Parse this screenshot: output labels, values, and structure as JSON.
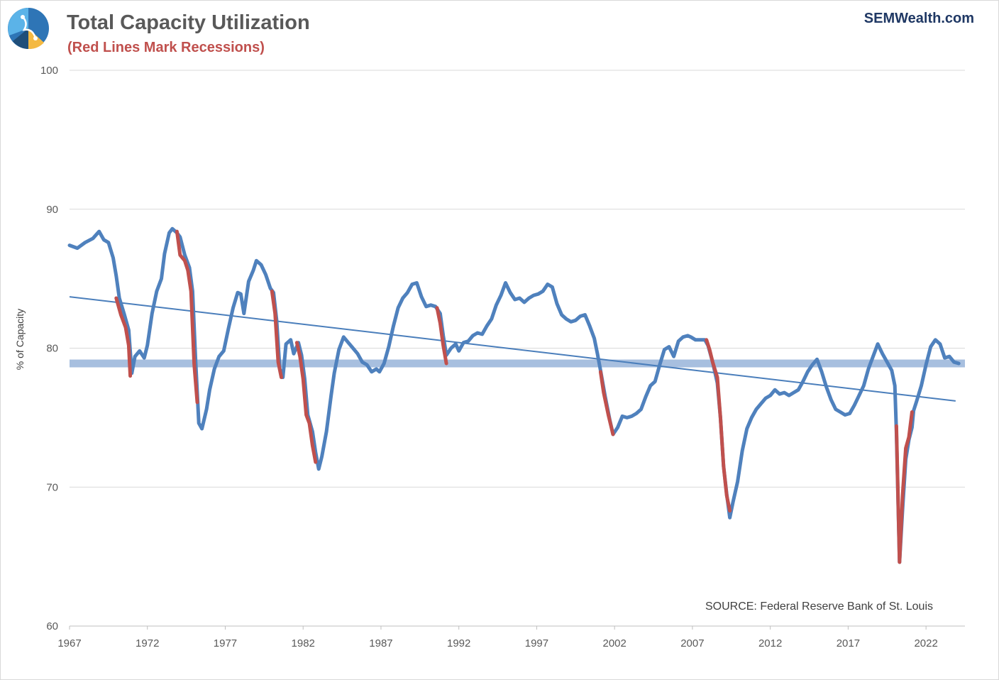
{
  "header": {
    "title": "Total Capacity Utilization",
    "subtitle": "(Red Lines Mark Recessions)",
    "brand": "SEMWealth.com"
  },
  "source_note": "SOURCE:  Federal Reserve Bank of St. Louis",
  "colors": {
    "series": "#4f81bd",
    "recession": "#c0504d",
    "trend": "#4a7ebb",
    "reference_band": "#a7bfdf",
    "grid": "#d9d9d9",
    "title": "#595959",
    "brand": "#1f3864"
  },
  "chart_data": {
    "type": "line",
    "title": "Total Capacity Utilization",
    "subtitle": "(Red Lines Mark Recessions)",
    "ylabel": "% of Capacity",
    "xlabel": "",
    "xlim": [
      1967,
      2024.5
    ],
    "ylim": [
      60,
      100
    ],
    "x_ticks": [
      "1967",
      "1972",
      "1977",
      "1982",
      "1987",
      "1992",
      "1997",
      "2002",
      "2007",
      "2012",
      "2017",
      "2022"
    ],
    "y_ticks": [
      "60",
      "70",
      "80",
      "90",
      "100"
    ],
    "grid": "horizontal",
    "legend": "none",
    "series": [
      {
        "values": [
          [
            1967.0,
            87.4
          ],
          [
            1967.5,
            87.2
          ],
          [
            1968.0,
            87.6
          ],
          [
            1968.5,
            87.9
          ],
          [
            1968.9,
            88.4
          ],
          [
            1969.2,
            87.8
          ],
          [
            1969.5,
            87.6
          ],
          [
            1969.8,
            86.5
          ],
          [
            1970.0,
            85.2
          ],
          [
            1970.2,
            83.6
          ],
          [
            1970.5,
            82.5
          ],
          [
            1970.8,
            81.3
          ],
          [
            1971.0,
            78.2
          ],
          [
            1971.2,
            79.4
          ],
          [
            1971.5,
            79.8
          ],
          [
            1971.8,
            79.3
          ],
          [
            1972.0,
            80.2
          ],
          [
            1972.3,
            82.5
          ],
          [
            1972.6,
            84.1
          ],
          [
            1972.9,
            85.0
          ],
          [
            1973.1,
            86.8
          ],
          [
            1973.4,
            88.3
          ],
          [
            1973.6,
            88.6
          ],
          [
            1973.9,
            88.3
          ],
          [
            1974.1,
            88.0
          ],
          [
            1974.4,
            86.7
          ],
          [
            1974.7,
            85.8
          ],
          [
            1974.9,
            84.1
          ],
          [
            1975.1,
            79.0
          ],
          [
            1975.3,
            74.6
          ],
          [
            1975.5,
            74.2
          ],
          [
            1975.8,
            75.6
          ],
          [
            1976.0,
            77.0
          ],
          [
            1976.3,
            78.5
          ],
          [
            1976.6,
            79.4
          ],
          [
            1976.9,
            79.8
          ],
          [
            1977.2,
            81.4
          ],
          [
            1977.5,
            82.9
          ],
          [
            1977.8,
            84.0
          ],
          [
            1978.0,
            83.9
          ],
          [
            1978.2,
            82.5
          ],
          [
            1978.5,
            84.8
          ],
          [
            1978.8,
            85.6
          ],
          [
            1979.0,
            86.3
          ],
          [
            1979.3,
            86.0
          ],
          [
            1979.6,
            85.3
          ],
          [
            1979.9,
            84.3
          ],
          [
            1980.1,
            84.0
          ],
          [
            1980.3,
            82.0
          ],
          [
            1980.5,
            78.5
          ],
          [
            1980.7,
            77.9
          ],
          [
            1980.9,
            80.3
          ],
          [
            1981.2,
            80.6
          ],
          [
            1981.4,
            79.6
          ],
          [
            1981.7,
            80.4
          ],
          [
            1981.9,
            79.5
          ],
          [
            1982.1,
            77.8
          ],
          [
            1982.3,
            75.2
          ],
          [
            1982.6,
            74.0
          ],
          [
            1982.8,
            72.5
          ],
          [
            1983.0,
            71.3
          ],
          [
            1983.2,
            72.2
          ],
          [
            1983.5,
            74.0
          ],
          [
            1983.8,
            76.6
          ],
          [
            1984.0,
            78.2
          ],
          [
            1984.3,
            79.9
          ],
          [
            1984.6,
            80.8
          ],
          [
            1984.9,
            80.4
          ],
          [
            1985.2,
            80.0
          ],
          [
            1985.5,
            79.6
          ],
          [
            1985.8,
            79.0
          ],
          [
            1986.1,
            78.8
          ],
          [
            1986.4,
            78.3
          ],
          [
            1986.7,
            78.5
          ],
          [
            1986.9,
            78.3
          ],
          [
            1987.2,
            78.9
          ],
          [
            1987.5,
            80.1
          ],
          [
            1987.8,
            81.6
          ],
          [
            1988.1,
            82.9
          ],
          [
            1988.4,
            83.6
          ],
          [
            1988.7,
            84.0
          ],
          [
            1989.0,
            84.6
          ],
          [
            1989.3,
            84.7
          ],
          [
            1989.6,
            83.7
          ],
          [
            1989.9,
            83.0
          ],
          [
            1990.2,
            83.1
          ],
          [
            1990.5,
            83.0
          ],
          [
            1990.8,
            82.5
          ],
          [
            1991.0,
            80.9
          ],
          [
            1991.2,
            79.5
          ],
          [
            1991.5,
            80.0
          ],
          [
            1991.8,
            80.3
          ],
          [
            1992.0,
            79.8
          ],
          [
            1992.3,
            80.4
          ],
          [
            1992.6,
            80.5
          ],
          [
            1992.9,
            80.9
          ],
          [
            1993.2,
            81.1
          ],
          [
            1993.5,
            81.0
          ],
          [
            1993.8,
            81.6
          ],
          [
            1994.1,
            82.1
          ],
          [
            1994.4,
            83.1
          ],
          [
            1994.7,
            83.8
          ],
          [
            1995.0,
            84.7
          ],
          [
            1995.3,
            84.0
          ],
          [
            1995.6,
            83.5
          ],
          [
            1995.9,
            83.6
          ],
          [
            1996.2,
            83.3
          ],
          [
            1996.5,
            83.6
          ],
          [
            1996.8,
            83.8
          ],
          [
            1997.1,
            83.9
          ],
          [
            1997.4,
            84.1
          ],
          [
            1997.7,
            84.6
          ],
          [
            1998.0,
            84.4
          ],
          [
            1998.3,
            83.2
          ],
          [
            1998.6,
            82.4
          ],
          [
            1998.9,
            82.1
          ],
          [
            1999.2,
            81.9
          ],
          [
            1999.5,
            82.0
          ],
          [
            1999.8,
            82.3
          ],
          [
            2000.1,
            82.4
          ],
          [
            2000.4,
            81.6
          ],
          [
            2000.7,
            80.7
          ],
          [
            2000.9,
            79.6
          ],
          [
            2001.1,
            78.4
          ],
          [
            2001.4,
            76.5
          ],
          [
            2001.7,
            74.8
          ],
          [
            2001.9,
            73.8
          ],
          [
            2002.2,
            74.3
          ],
          [
            2002.5,
            75.1
          ],
          [
            2002.8,
            75.0
          ],
          [
            2003.1,
            75.1
          ],
          [
            2003.4,
            75.3
          ],
          [
            2003.7,
            75.6
          ],
          [
            2004.0,
            76.5
          ],
          [
            2004.3,
            77.3
          ],
          [
            2004.6,
            77.6
          ],
          [
            2004.9,
            78.8
          ],
          [
            2005.2,
            79.9
          ],
          [
            2005.5,
            80.1
          ],
          [
            2005.8,
            79.4
          ],
          [
            2006.1,
            80.5
          ],
          [
            2006.4,
            80.8
          ],
          [
            2006.7,
            80.9
          ],
          [
            2006.9,
            80.8
          ],
          [
            2007.2,
            80.6
          ],
          [
            2007.5,
            80.6
          ],
          [
            2007.8,
            80.6
          ],
          [
            2008.0,
            80.2
          ],
          [
            2008.3,
            79.0
          ],
          [
            2008.6,
            77.5
          ],
          [
            2008.8,
            75.0
          ],
          [
            2009.0,
            71.5
          ],
          [
            2009.2,
            69.5
          ],
          [
            2009.4,
            67.8
          ],
          [
            2009.6,
            68.9
          ],
          [
            2009.9,
            70.4
          ],
          [
            2010.2,
            72.6
          ],
          [
            2010.5,
            74.2
          ],
          [
            2010.8,
            75.0
          ],
          [
            2011.1,
            75.6
          ],
          [
            2011.4,
            76.0
          ],
          [
            2011.7,
            76.4
          ],
          [
            2012.0,
            76.6
          ],
          [
            2012.3,
            77.0
          ],
          [
            2012.6,
            76.7
          ],
          [
            2012.9,
            76.8
          ],
          [
            2013.2,
            76.6
          ],
          [
            2013.5,
            76.8
          ],
          [
            2013.8,
            77.0
          ],
          [
            2014.1,
            77.6
          ],
          [
            2014.4,
            78.3
          ],
          [
            2014.7,
            78.8
          ],
          [
            2015.0,
            79.2
          ],
          [
            2015.3,
            78.3
          ],
          [
            2015.6,
            77.2
          ],
          [
            2015.9,
            76.3
          ],
          [
            2016.2,
            75.6
          ],
          [
            2016.5,
            75.4
          ],
          [
            2016.8,
            75.2
          ],
          [
            2017.1,
            75.3
          ],
          [
            2017.4,
            75.9
          ],
          [
            2017.7,
            76.6
          ],
          [
            2018.0,
            77.3
          ],
          [
            2018.3,
            78.5
          ],
          [
            2018.6,
            79.4
          ],
          [
            2018.9,
            80.3
          ],
          [
            2019.2,
            79.6
          ],
          [
            2019.5,
            79.0
          ],
          [
            2019.8,
            78.4
          ],
          [
            2020.0,
            77.3
          ],
          [
            2020.1,
            74.0
          ],
          [
            2020.3,
            64.6
          ],
          [
            2020.5,
            68.5
          ],
          [
            2020.7,
            72.0
          ],
          [
            2020.9,
            73.4
          ],
          [
            2021.1,
            74.3
          ],
          [
            2021.2,
            75.5
          ],
          [
            2021.4,
            76.2
          ],
          [
            2021.7,
            77.3
          ],
          [
            2022.0,
            78.8
          ],
          [
            2022.3,
            80.1
          ],
          [
            2022.6,
            80.6
          ],
          [
            2022.9,
            80.3
          ],
          [
            2023.2,
            79.3
          ],
          [
            2023.5,
            79.4
          ],
          [
            2023.8,
            79.0
          ],
          [
            2024.1,
            78.9
          ]
        ]
      }
    ],
    "recession_highlights": [
      {
        "start": 1970.0,
        "end": 1970.9,
        "values": [
          [
            1970.0,
            83.6
          ],
          [
            1970.3,
            82.4
          ],
          [
            1970.6,
            81.5
          ],
          [
            1970.8,
            80.2
          ],
          [
            1970.9,
            78.0
          ]
        ]
      },
      {
        "start": 1973.9,
        "end": 1975.2,
        "values": [
          [
            1973.9,
            88.4
          ],
          [
            1974.1,
            86.7
          ],
          [
            1974.4,
            86.3
          ],
          [
            1974.6,
            85.6
          ],
          [
            1974.8,
            84.1
          ],
          [
            1975.0,
            78.9
          ],
          [
            1975.2,
            76.1
          ]
        ]
      },
      {
        "start": 1980.0,
        "end": 1980.6,
        "values": [
          [
            1980.0,
            84.1
          ],
          [
            1980.2,
            82.5
          ],
          [
            1980.4,
            79.0
          ],
          [
            1980.6,
            77.9
          ]
        ]
      },
      {
        "start": 1981.6,
        "end": 1982.9,
        "values": [
          [
            1981.6,
            80.4
          ],
          [
            1981.8,
            79.4
          ],
          [
            1982.0,
            77.8
          ],
          [
            1982.2,
            75.2
          ],
          [
            1982.4,
            74.6
          ],
          [
            1982.6,
            73.0
          ],
          [
            1982.8,
            71.8
          ]
        ]
      },
      {
        "start": 1990.6,
        "end": 1991.2,
        "values": [
          [
            1990.6,
            82.9
          ],
          [
            1990.8,
            81.8
          ],
          [
            1991.0,
            80.2
          ],
          [
            1991.2,
            78.9
          ]
        ]
      },
      {
        "start": 2001.1,
        "end": 2001.9,
        "values": [
          [
            2001.1,
            78.3
          ],
          [
            2001.3,
            76.8
          ],
          [
            2001.6,
            75.2
          ],
          [
            2001.9,
            73.8
          ]
        ]
      },
      {
        "start": 2007.9,
        "end": 2009.5,
        "values": [
          [
            2007.9,
            80.6
          ],
          [
            2008.1,
            79.9
          ],
          [
            2008.3,
            79.0
          ],
          [
            2008.6,
            77.9
          ],
          [
            2008.8,
            75.0
          ],
          [
            2009.0,
            71.5
          ],
          [
            2009.2,
            69.4
          ],
          [
            2009.4,
            68.3
          ]
        ]
      },
      {
        "start": 2020.1,
        "end": 2021.2,
        "values": [
          [
            2020.1,
            74.4
          ],
          [
            2020.3,
            64.6
          ],
          [
            2020.5,
            69.5
          ],
          [
            2020.7,
            72.8
          ],
          [
            2020.9,
            73.6
          ],
          [
            2021.1,
            75.4
          ]
        ]
      }
    ],
    "trend_line": {
      "start": [
        1967.0,
        83.7
      ],
      "end": [
        2023.9,
        76.2
      ]
    },
    "reference_band": {
      "y": 78.9
    }
  }
}
